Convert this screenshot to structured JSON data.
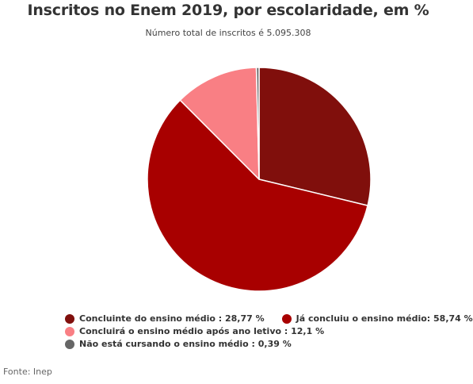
{
  "chart_data": {
    "type": "pie",
    "title": "Inscritos no Enem 2019, por escolaridade, em %",
    "subtitle": "Número total de inscritos é 5.095.308",
    "source": "Fonte: Inep",
    "legend_position": "bottom",
    "series": [
      {
        "name": "Concluinte do ensino médio : 28,77 %",
        "label": "Concluinte do ensino médio",
        "value": 28.77,
        "color": "#800f0c"
      },
      {
        "name": "Já concluiu o ensino médio: 58,74 %",
        "label": "Já concluiu o ensino médio",
        "value": 58.74,
        "color": "#a80000"
      },
      {
        "name": "Concluirá o ensino médio após ano letivo : 12,1 %",
        "label": "Concluirá o ensino médio após ano letivo",
        "value": 12.1,
        "color": "#f97f84"
      },
      {
        "name": "Não está cursando o ensino médio : 0,39 %",
        "label": "Não está cursando o ensino médio",
        "value": 0.39,
        "color": "#666666"
      }
    ]
  }
}
